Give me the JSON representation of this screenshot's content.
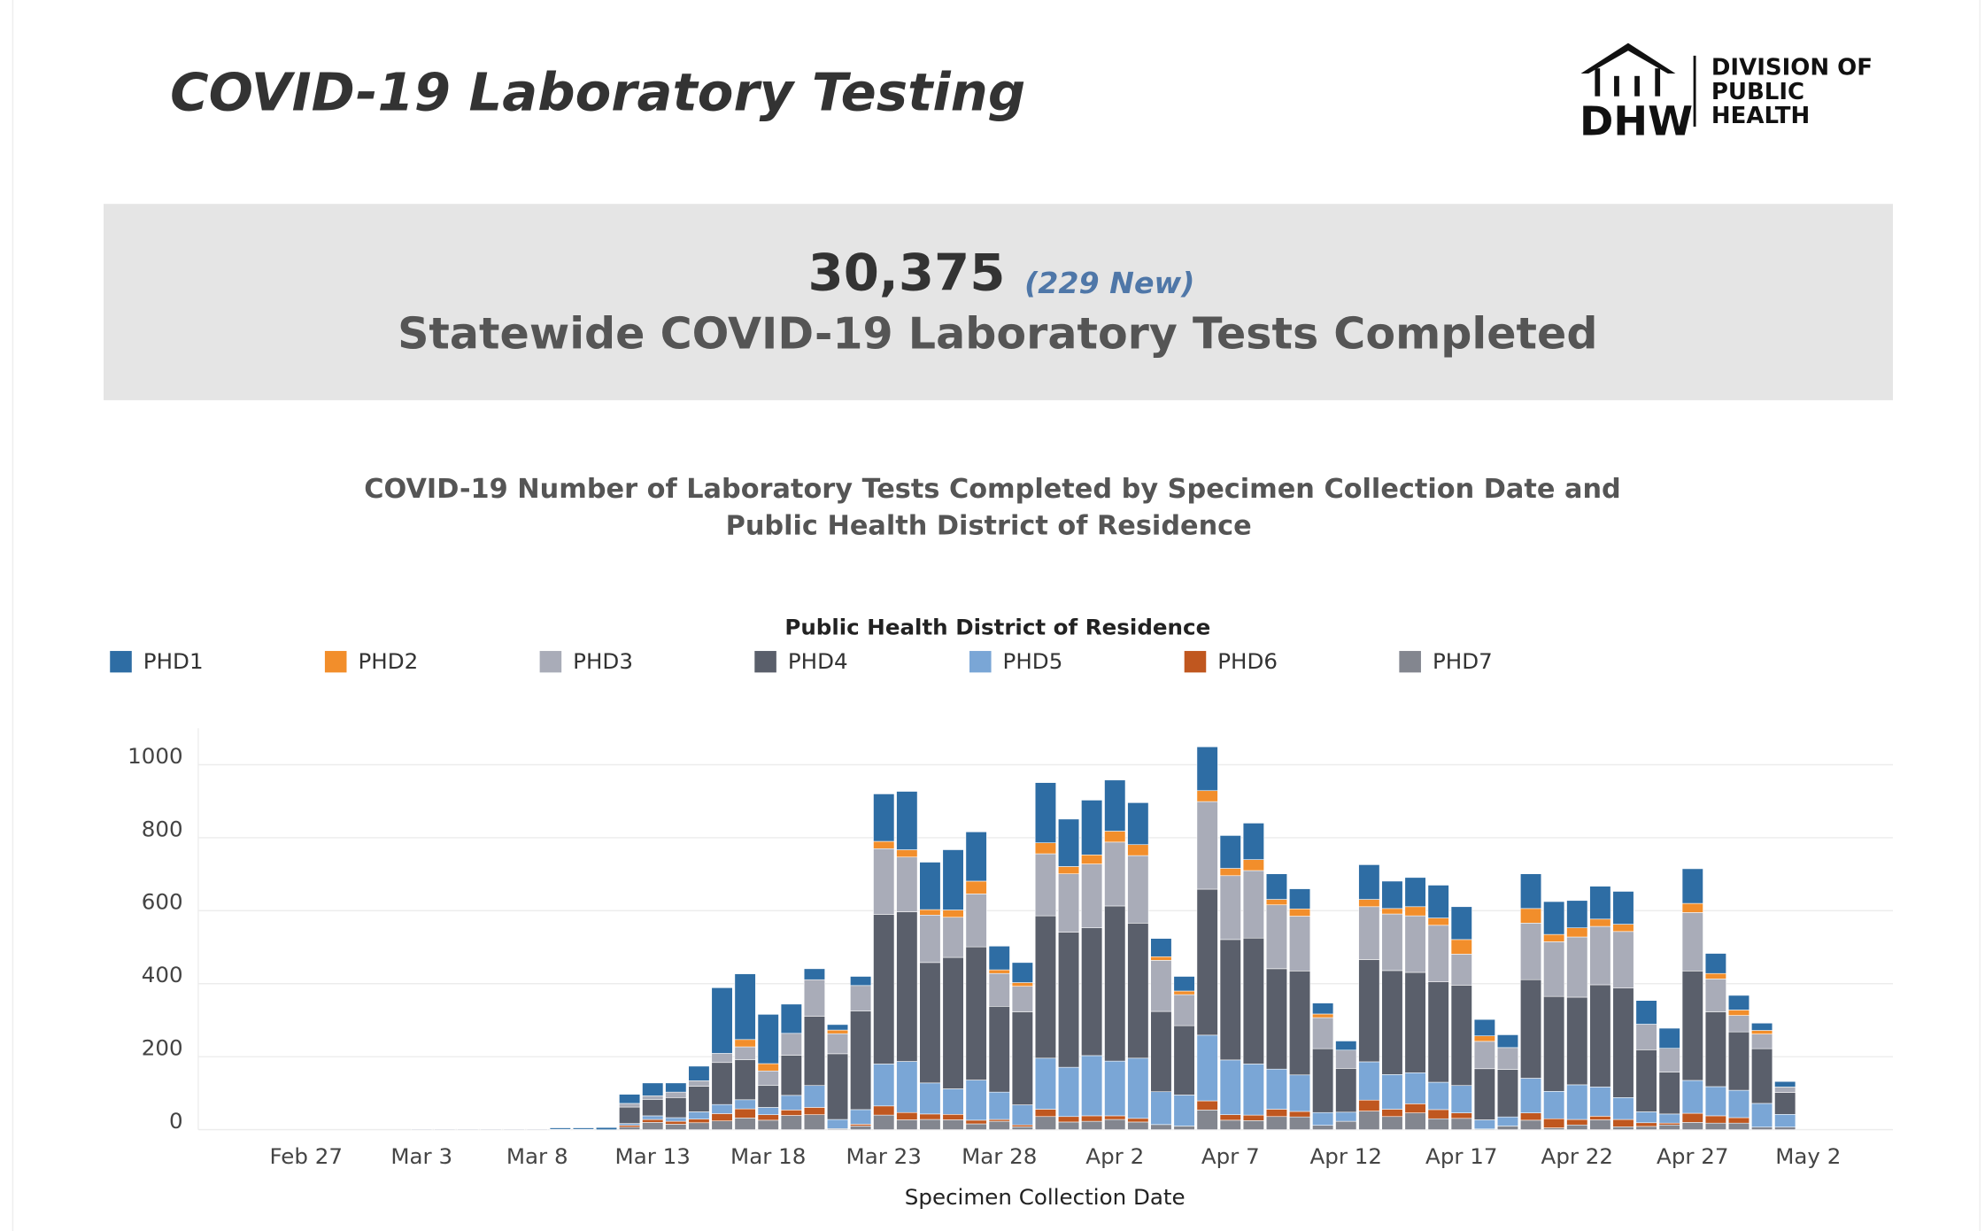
{
  "header": {
    "title": "COVID-19 Laboratory Testing",
    "logo": {
      "mark": "DHW",
      "lines": [
        "DIVISION OF",
        "PUBLIC",
        "HEALTH"
      ]
    }
  },
  "banner": {
    "total": "30,375",
    "new": "(229 New)",
    "label": "Statewide COVID-19 Laboratory Tests Completed"
  },
  "chart_data": {
    "type": "bar",
    "stacked": true,
    "title": [
      "COVID-19 Number of Laboratory Tests Completed by Specimen Collection Date and",
      "Public Health District of Residence"
    ],
    "legend_title": "Public Health District of Residence",
    "x_label": "Specimen Collection Date",
    "grid": true,
    "categories": [
      "Feb 23",
      "Feb 24",
      "Feb 25",
      "Feb 26",
      "Feb 27",
      "Feb 28",
      "Feb 29",
      "Mar 1",
      "Mar 2",
      "Mar 3",
      "Mar 4",
      "Mar 5",
      "Mar 6",
      "Mar 7",
      "Mar 8",
      "Mar 9",
      "Mar 10",
      "Mar 11",
      "Mar 12",
      "Mar 13",
      "Mar 14",
      "Mar 15",
      "Mar 16",
      "Mar 17",
      "Mar 18",
      "Mar 19",
      "Mar 20",
      "Mar 21",
      "Mar 22",
      "Mar 23",
      "Mar 24",
      "Mar 25",
      "Mar 26",
      "Mar 27",
      "Mar 28",
      "Mar 29",
      "Mar 30",
      "Mar 31",
      "Apr 1",
      "Apr 2",
      "Apr 3",
      "Apr 4",
      "Apr 5",
      "Apr 6",
      "Apr 7",
      "Apr 8",
      "Apr 9",
      "Apr 10",
      "Apr 11",
      "Apr 12",
      "Apr 13",
      "Apr 14",
      "Apr 15",
      "Apr 16",
      "Apr 17",
      "Apr 18",
      "Apr 19",
      "Apr 20",
      "Apr 21",
      "Apr 22",
      "Apr 23",
      "Apr 24",
      "Apr 25",
      "Apr 26",
      "Apr 27",
      "Apr 28",
      "Apr 29",
      "Apr 30",
      "May 1",
      "May 2",
      "May 3",
      "May 4",
      "May 5"
    ],
    "xticks": [
      "Feb 27",
      "Mar 3",
      "Mar 8",
      "Mar 13",
      "Mar 18",
      "Mar 23",
      "Mar 28",
      "Apr 2",
      "Apr 7",
      "Apr 12",
      "Apr 17",
      "Apr 22",
      "Apr 27",
      "May 2"
    ],
    "ylim": [
      0,
      1100
    ],
    "yticks": [
      0,
      200,
      400,
      600,
      800,
      1000
    ],
    "series": [
      {
        "name": "PHD1",
        "color": "#2e6da4",
        "values": [
          null,
          null,
          null,
          null,
          null,
          null,
          null,
          null,
          null,
          0,
          0,
          0,
          0,
          0,
          0,
          4,
          4,
          6,
          25,
          35,
          25,
          40,
          180,
          180,
          135,
          80,
          30,
          15,
          25,
          130,
          160,
          130,
          165,
          135,
          65,
          55,
          165,
          130,
          150,
          140,
          115,
          50,
          40,
          120,
          90,
          100,
          70,
          55,
          30,
          25,
          95,
          75,
          80,
          90,
          90,
          45,
          35,
          95,
          90,
          75,
          90,
          90,
          65,
          55,
          95,
          55,
          40,
          20,
          15,
          null,
          null,
          null,
          null
        ]
      },
      {
        "name": "PHD2",
        "color": "#f28e2b",
        "values": [
          null,
          null,
          null,
          null,
          null,
          null,
          null,
          null,
          null,
          0,
          0,
          0,
          0,
          0,
          0,
          0,
          0,
          0,
          0,
          0,
          0,
          0,
          0,
          20,
          20,
          0,
          0,
          10,
          0,
          20,
          20,
          15,
          20,
          35,
          10,
          10,
          30,
          20,
          25,
          30,
          30,
          10,
          10,
          30,
          20,
          30,
          15,
          20,
          10,
          0,
          20,
          15,
          25,
          20,
          40,
          15,
          0,
          40,
          20,
          25,
          20,
          20,
          0,
          0,
          25,
          15,
          15,
          10,
          0,
          null,
          null,
          null,
          null
        ]
      },
      {
        "name": "PHD3",
        "color": "#a9acb8",
        "values": [
          null,
          null,
          null,
          null,
          null,
          null,
          null,
          null,
          null,
          2,
          2,
          2,
          2,
          2,
          2,
          0,
          0,
          0,
          10,
          10,
          15,
          15,
          25,
          35,
          40,
          60,
          100,
          55,
          70,
          180,
          150,
          130,
          110,
          145,
          90,
          70,
          170,
          160,
          175,
          175,
          185,
          140,
          85,
          240,
          175,
          185,
          175,
          150,
          85,
          50,
          145,
          155,
          155,
          155,
          85,
          75,
          60,
          155,
          150,
          165,
          160,
          155,
          70,
          65,
          160,
          90,
          45,
          40,
          15,
          null,
          null,
          null,
          null
        ]
      },
      {
        "name": "PHD4",
        "color": "#5a5f6b",
        "values": [
          null,
          null,
          null,
          null,
          null,
          null,
          null,
          null,
          null,
          0,
          0,
          0,
          0,
          0,
          0,
          0,
          0,
          0,
          45,
          45,
          55,
          70,
          115,
          110,
          60,
          110,
          190,
          180,
          270,
          410,
          410,
          330,
          360,
          365,
          235,
          255,
          390,
          370,
          350,
          425,
          370,
          220,
          190,
          400,
          330,
          345,
          275,
          285,
          175,
          120,
          280,
          285,
          275,
          275,
          275,
          140,
          130,
          270,
          260,
          240,
          280,
          300,
          170,
          115,
          300,
          205,
          160,
          150,
          60,
          null,
          null,
          null,
          null
        ]
      },
      {
        "name": "PHD5",
        "color": "#7aa6d6",
        "values": [
          null,
          null,
          null,
          null,
          null,
          null,
          null,
          null,
          null,
          0,
          0,
          0,
          0,
          0,
          0,
          0,
          0,
          0,
          5,
          10,
          10,
          20,
          25,
          25,
          20,
          40,
          60,
          25,
          40,
          115,
          140,
          85,
          70,
          110,
          75,
          55,
          140,
          135,
          165,
          150,
          165,
          90,
          85,
          180,
          150,
          140,
          110,
          100,
          35,
          25,
          105,
          95,
          85,
          75,
          75,
          25,
          25,
          95,
          75,
          95,
          80,
          60,
          30,
          25,
          90,
          80,
          75,
          65,
          35,
          null,
          null,
          null,
          null
        ]
      },
      {
        "name": "PHD6",
        "color": "#c0571f",
        "values": [
          null,
          null,
          null,
          null,
          null,
          null,
          null,
          null,
          null,
          0,
          0,
          0,
          0,
          0,
          0,
          0,
          0,
          0,
          5,
          8,
          8,
          10,
          20,
          25,
          15,
          15,
          20,
          0,
          5,
          25,
          20,
          15,
          15,
          10,
          5,
          5,
          20,
          15,
          15,
          10,
          10,
          0,
          0,
          25,
          15,
          15,
          20,
          15,
          0,
          0,
          30,
          20,
          25,
          25,
          15,
          0,
          0,
          20,
          25,
          15,
          10,
          20,
          10,
          5,
          25,
          20,
          15,
          0,
          0,
          null,
          null,
          null,
          null
        ]
      },
      {
        "name": "PHD7",
        "color": "#83868f",
        "values": [
          null,
          null,
          null,
          null,
          null,
          null,
          null,
          null,
          null,
          0,
          0,
          0,
          0,
          0,
          0,
          1,
          1,
          0,
          7,
          20,
          15,
          19,
          24,
          32,
          26,
          39,
          41,
          3,
          10,
          40,
          27,
          28,
          27,
          16,
          23,
          8,
          36,
          21,
          23,
          28,
          21,
          14,
          10,
          54,
          26,
          25,
          36,
          35,
          12,
          23,
          51,
          36,
          46,
          30,
          31,
          2,
          10,
          26,
          5,
          13,
          27,
          8,
          9,
          13,
          20,
          18,
          18,
          7,
          7,
          null,
          null,
          null,
          null
        ]
      }
    ]
  }
}
